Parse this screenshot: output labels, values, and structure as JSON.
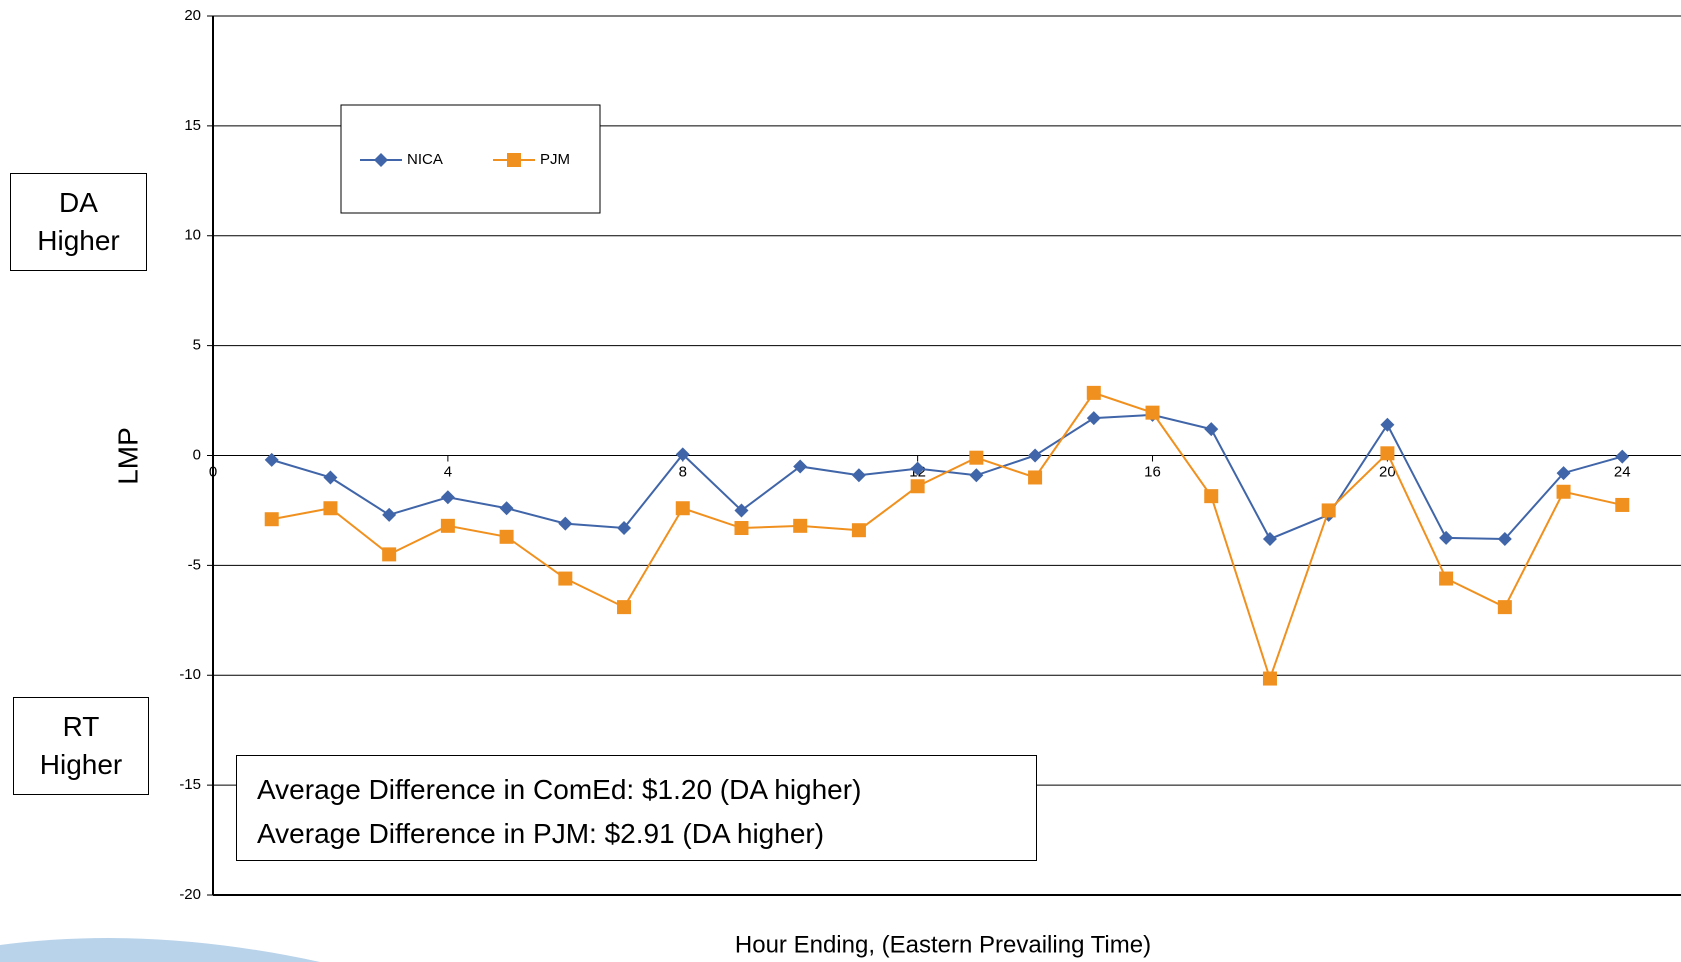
{
  "chart_data": {
    "type": "line",
    "x_label": "Hour Ending, (Eastern Prevailing Time)",
    "y_label": "LMP",
    "x": [
      1,
      2,
      3,
      4,
      5,
      6,
      7,
      8,
      9,
      10,
      11,
      12,
      13,
      14,
      15,
      16,
      17,
      18,
      19,
      20,
      21,
      22,
      23,
      24
    ],
    "series": [
      {
        "name": "NICA",
        "color": "#4065a8",
        "marker": "diamond",
        "values": [
          -0.2,
          -1.0,
          -2.7,
          -1.9,
          -2.4,
          -3.1,
          -3.3,
          0.05,
          -2.5,
          -0.5,
          -0.9,
          -0.6,
          -0.9,
          0,
          1.7,
          1.85,
          1.2,
          -3.8,
          -2.7,
          1.4,
          -3.75,
          -3.8,
          -0.8,
          -0.05
        ]
      },
      {
        "name": "PJM",
        "color": "#f0901e",
        "marker": "square",
        "values": [
          -2.9,
          -2.4,
          -4.5,
          -3.2,
          -3.7,
          -5.6,
          -6.9,
          -2.4,
          -3.3,
          -3.2,
          -3.4,
          -1.4,
          -0.1,
          -1.0,
          2.85,
          1.95,
          -1.85,
          -10.15,
          -2.5,
          0.1,
          -5.6,
          -6.9,
          -1.65,
          -2.25
        ]
      }
    ],
    "xlim": [
      0,
      25
    ],
    "xticks": [
      0,
      4,
      8,
      12,
      16,
      20,
      24
    ],
    "ylim": [
      -20,
      20
    ],
    "yticks": [
      -20,
      -15,
      -10,
      -5,
      0,
      5,
      10,
      15,
      20
    ],
    "grid": true,
    "legend": "upper left",
    "side_labels": {
      "upper": "DA Higher",
      "lower": "RT Higher"
    },
    "annotations": [
      "Average Difference in ComEd: $1.20 (DA higher)",
      "Average Difference in PJM: $2.91 (DA higher)"
    ]
  }
}
